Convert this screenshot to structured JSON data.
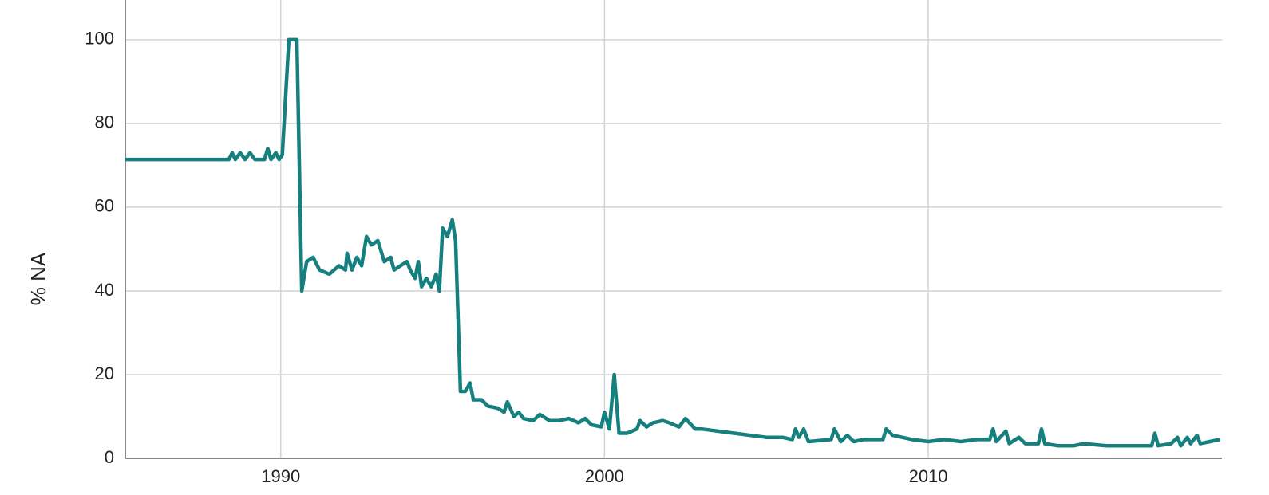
{
  "chart_data": {
    "type": "line",
    "y_label": "% NA",
    "color": "#16807f",
    "x": [
      1985.2,
      1988.4,
      1988.5,
      1988.6,
      1988.75,
      1988.9,
      1989.05,
      1989.2,
      1989.5,
      1989.6,
      1989.7,
      1989.85,
      1989.95,
      1990.05,
      1990.25,
      1990.4,
      1990.5,
      1990.65,
      1990.8,
      1991.0,
      1991.2,
      1991.5,
      1991.8,
      1992.0,
      1992.05,
      1992.2,
      1992.35,
      1992.5,
      1992.65,
      1992.8,
      1993.0,
      1993.2,
      1993.4,
      1993.5,
      1993.7,
      1993.9,
      1994.0,
      1994.15,
      1994.25,
      1994.35,
      1994.5,
      1994.65,
      1994.8,
      1994.9,
      1995.0,
      1995.15,
      1995.3,
      1995.4,
      1995.55,
      1995.7,
      1995.85,
      1995.95,
      1996.2,
      1996.4,
      1996.7,
      1996.9,
      1997.0,
      1997.2,
      1997.35,
      1997.5,
      1997.8,
      1998.0,
      1998.3,
      1998.6,
      1998.9,
      1999.2,
      1999.4,
      1999.6,
      1999.9,
      2000.0,
      2000.15,
      2000.3,
      2000.45,
      2000.7,
      2001.0,
      2001.1,
      2001.3,
      2001.5,
      2001.8,
      2002.0,
      2002.3,
      2002.5,
      2002.8,
      2003.0,
      2003.5,
      2004.0,
      2004.5,
      2005.0,
      2005.5,
      2005.8,
      2005.9,
      2006.0,
      2006.15,
      2006.3,
      2007.0,
      2007.1,
      2007.3,
      2007.5,
      2007.7,
      2008.0,
      2008.6,
      2008.7,
      2008.9,
      2009.5,
      2010.0,
      2010.5,
      2011.0,
      2011.5,
      2011.9,
      2012.0,
      2012.1,
      2012.4,
      2012.5,
      2012.8,
      2013.0,
      2013.4,
      2013.5,
      2013.6,
      2014.0,
      2014.5,
      2014.8,
      2015.5,
      2016.0,
      2016.9,
      2017.0,
      2017.1,
      2017.5,
      2017.7,
      2017.8,
      2018.0,
      2018.1,
      2018.3,
      2018.4,
      2018.7,
      2019.0
    ],
    "values": [
      71.4,
      71.4,
      73,
      71.4,
      73,
      71.4,
      73,
      71.4,
      71.4,
      74,
      71.4,
      73,
      71.4,
      72.5,
      100,
      100,
      100,
      40,
      47,
      48,
      45,
      44,
      46,
      45,
      49,
      45,
      48,
      46,
      53,
      51,
      52,
      47,
      48,
      45,
      46,
      47,
      45,
      43,
      47,
      41,
      43,
      41,
      44,
      40,
      55,
      53,
      57,
      52,
      16,
      16,
      18,
      14,
      14,
      12.5,
      12,
      11,
      13.5,
      10,
      11,
      9.5,
      9,
      10.5,
      9,
      9,
      9.5,
      8.5,
      9.5,
      8,
      7.5,
      11,
      7,
      20,
      6,
      6,
      7,
      9,
      7.5,
      8.5,
      9,
      8.5,
      7.5,
      9.5,
      7,
      7,
      6.5,
      6,
      5.5,
      5,
      5,
      4.5,
      7,
      5,
      7,
      4,
      4.5,
      7,
      4,
      5.5,
      4,
      4.5,
      4.5,
      7,
      5.5,
      4.5,
      4,
      4.5,
      4,
      4.5,
      4.5,
      7,
      4,
      6.5,
      3.5,
      5,
      3.5,
      3.5,
      7,
      3.5,
      3,
      3,
      3.5,
      3,
      3,
      3,
      6,
      3,
      3.5,
      5,
      3,
      5,
      3.5,
      5.5,
      3.5,
      4,
      4.5
    ],
    "xlim": [
      1985.2,
      2019.07
    ],
    "ylim": [
      0,
      109.5
    ],
    "xticks": [
      1990,
      2000,
      2010
    ],
    "yticks": [
      0,
      20,
      40,
      60,
      80,
      100
    ],
    "grid": true
  }
}
